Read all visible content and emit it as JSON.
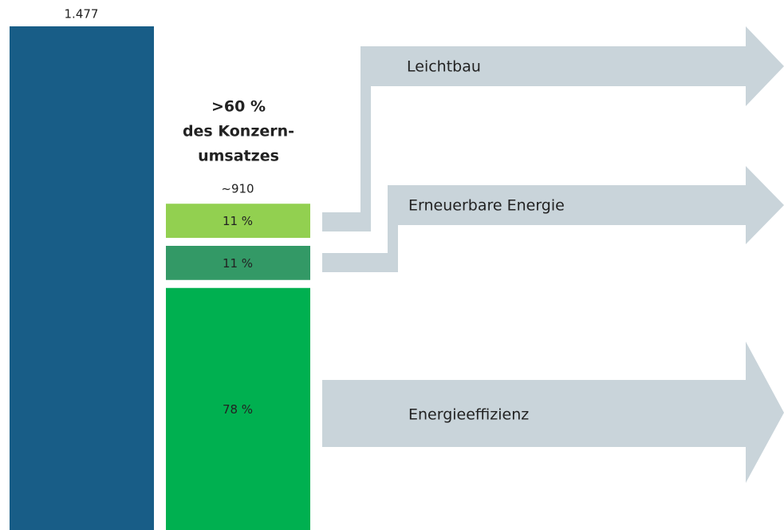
{
  "chart_data": {
    "type": "bar",
    "total": {
      "value": 1477,
      "value_label": "1.477",
      "color": "#185d87"
    },
    "subtotal": {
      "value": 910,
      "value_label": "~910"
    },
    "annotation": [
      ">60 %",
      "des Konzern-",
      "umsatzes"
    ],
    "categories": [
      "Leichtbau",
      "Erneuerbare Energie",
      "Energieeffizienz"
    ],
    "values": [
      11,
      11,
      78
    ],
    "value_labels": [
      "11 %",
      "11 %",
      "78 %"
    ],
    "colors": [
      "#92d050",
      "#339966",
      "#00b050"
    ]
  }
}
